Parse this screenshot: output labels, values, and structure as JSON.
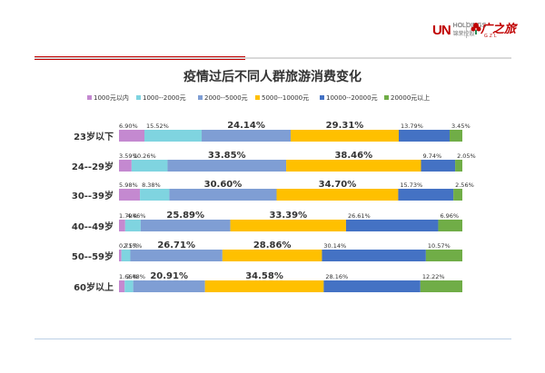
{
  "logos": {
    "holdings_mark": "UN",
    "holdings_name": "HOLDINGS",
    "holdings_cn": "锦荣控股",
    "brand_cn": "广之旅",
    "brand_en": "GZL"
  },
  "chart_data": {
    "type": "bar",
    "stacked": true,
    "normalized": true,
    "orientation": "horizontal",
    "title": "疫情过后不同人群旅游消费变化",
    "legend_position": "top",
    "categories": [
      "23岁以下",
      "24--29岁",
      "30--39岁",
      "40--49岁",
      "50--59岁",
      "60岁以上"
    ],
    "series": [
      {
        "name": "1000元以内",
        "color": "#c489d0",
        "values": [
          6.9,
          3.59,
          5.98,
          1.79,
          0.71,
          1.66
        ],
        "labels": [
          "6.90%",
          "3.59%",
          "5.98%",
          "1.79%",
          "0.71%",
          "1.66%"
        ]
      },
      {
        "name": "1000--2000元",
        "color": "#7fd4e0",
        "values": [
          15.52,
          10.26,
          8.38,
          4.46,
          2.57,
          2.48
        ],
        "labels": [
          "15.52%",
          "10.26%",
          "8.38%",
          "4.46%",
          "2.57%",
          "2.48%"
        ]
      },
      {
        "name": "2000--5000元",
        "color": "#7f9ed4",
        "values": [
          24.14,
          33.85,
          30.6,
          25.89,
          26.71,
          20.91
        ],
        "labels": [
          "24.14%",
          "33.85%",
          "30.60%",
          "25.89%",
          "26.71%",
          "20.91%"
        ]
      },
      {
        "name": "5000--10000元",
        "color": "#ffc000",
        "values": [
          29.31,
          38.46,
          34.7,
          33.39,
          28.86,
          34.58
        ],
        "labels": [
          "29.31%",
          "38.46%",
          "34.70%",
          "33.39%",
          "28.86%",
          "34.58%"
        ]
      },
      {
        "name": "10000--20000元",
        "color": "#4472c4",
        "values": [
          13.79,
          9.74,
          15.73,
          26.61,
          30.14,
          28.16
        ],
        "labels": [
          "13.79%",
          "9.74%",
          "15.73%",
          "26.61%",
          "30.14%",
          "28.16%"
        ]
      },
      {
        "name": "20000元以上",
        "color": "#70ad47",
        "values": [
          3.45,
          2.05,
          2.56,
          6.96,
          10.57,
          12.22
        ],
        "labels": [
          "3.45%",
          "2.05%",
          "2.56%",
          "6.96%",
          "10.57%",
          "12.22%"
        ]
      }
    ]
  }
}
